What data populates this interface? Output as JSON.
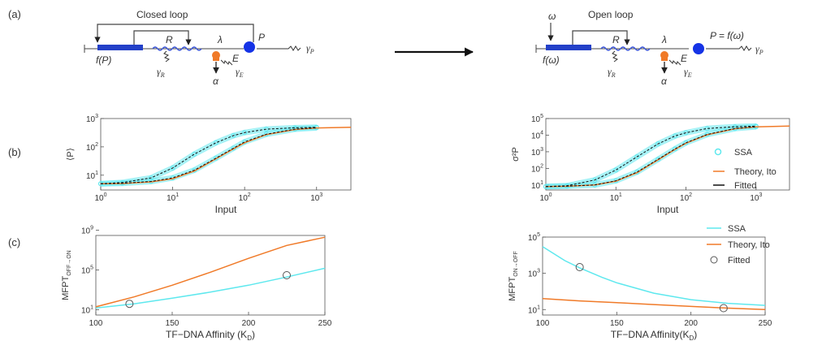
{
  "panel_labels": [
    "(a)",
    "(b)",
    "(c)"
  ],
  "diagram": {
    "closed": {
      "title": "Closed loop",
      "promoter": "f(P)",
      "R": "R",
      "gamma_R": "γ",
      "gamma_R_sub": "R",
      "lambda": "λ",
      "E": "E",
      "gamma_E": "γ",
      "gamma_E_sub": "E",
      "alpha": "α",
      "P": "P",
      "gamma_P": "γ",
      "gamma_P_sub": "P"
    },
    "open": {
      "title": "Open loop",
      "omega": "ω",
      "promoter": "f(ω)",
      "R": "R",
      "gamma_R": "γ",
      "gamma_R_sub": "R",
      "lambda": "λ",
      "E": "E",
      "gamma_E": "γ",
      "gamma_E_sub": "E",
      "alpha": "α",
      "P_eq": "P = f(ω)",
      "gamma_P": "γ",
      "gamma_P_sub": "P"
    }
  },
  "colors": {
    "ssa": "#5ee8ee",
    "theory": "#f07a28",
    "fitted": "#111111",
    "promoter": "#2340c8",
    "protein": "#1533e6",
    "enzyme": "#f07a28",
    "rna": "#3a55d8"
  },
  "legend_b": [
    "SSA",
    "Theory, Ito",
    "Fitted"
  ],
  "legend_c": [
    "SSA",
    "Theory, Ito",
    "Fitted"
  ],
  "chart_data": [
    {
      "panel": "b-left",
      "type": "line",
      "xlabel": "Input",
      "ylabel": "⟨P⟩",
      "xscale": "log",
      "yscale": "log",
      "xlim": [
        1,
        3000
      ],
      "ylim": [
        3,
        1000
      ],
      "xticks": [
        "10^0",
        "10^1",
        "10^2",
        "10^3"
      ],
      "yticks": [
        "10^1",
        "10^2",
        "10^3"
      ],
      "series": [
        {
          "kind": "SSA",
          "x": [
            1,
            2,
            5,
            10,
            20,
            40,
            70,
            100,
            200,
            500,
            1000
          ],
          "y": [
            5,
            5.5,
            8,
            18,
            55,
            140,
            250,
            320,
            420,
            470,
            490
          ]
        },
        {
          "kind": "SSA",
          "x": [
            1,
            2,
            5,
            10,
            20,
            40,
            70,
            100,
            200,
            500,
            1000
          ],
          "y": [
            5,
            5.2,
            6,
            8,
            15,
            40,
            90,
            150,
            280,
            420,
            470
          ]
        },
        {
          "kind": "Theory, Ito",
          "x": [
            1,
            2,
            5,
            10,
            20,
            40,
            70,
            100,
            200,
            500,
            1000,
            3000
          ],
          "y": [
            5,
            5.1,
            5.8,
            7.5,
            14,
            38,
            85,
            140,
            270,
            410,
            465,
            490
          ]
        },
        {
          "kind": "Fitted",
          "x": [
            1,
            2,
            5,
            10,
            20,
            40,
            70,
            100,
            200,
            500,
            1000
          ],
          "y": [
            5,
            5.5,
            8,
            18,
            55,
            140,
            250,
            320,
            420,
            470,
            490
          ]
        },
        {
          "kind": "Fitted",
          "x": [
            1,
            2,
            5,
            10,
            20,
            40,
            70,
            100,
            200,
            500,
            1000
          ],
          "y": [
            5,
            5.2,
            6,
            8,
            15,
            40,
            90,
            150,
            280,
            420,
            470
          ]
        }
      ]
    },
    {
      "panel": "b-right",
      "type": "line",
      "xlabel": "Input",
      "ylabel": "σ²P",
      "xscale": "log",
      "yscale": "log",
      "xlim": [
        1,
        3000
      ],
      "ylim": [
        5,
        100000
      ],
      "xticks": [
        "10^0",
        "10^1",
        "10^2",
        "10^3"
      ],
      "yticks": [
        "10^1",
        "10^2",
        "10^3",
        "10^4",
        "10^5"
      ],
      "series": [
        {
          "kind": "SSA",
          "x": [
            1,
            2,
            5,
            10,
            20,
            40,
            70,
            100,
            200,
            500,
            1000
          ],
          "y": [
            8,
            9,
            20,
            80,
            500,
            3000,
            9000,
            14000,
            25000,
            32000,
            35000
          ]
        },
        {
          "kind": "SSA",
          "x": [
            1,
            2,
            5,
            10,
            20,
            40,
            70,
            100,
            200,
            500,
            1000
          ],
          "y": [
            8,
            8.5,
            10,
            18,
            60,
            350,
            1500,
            3500,
            11000,
            25000,
            32000
          ]
        },
        {
          "kind": "Theory, Ito",
          "x": [
            1,
            2,
            5,
            10,
            20,
            40,
            70,
            100,
            200,
            500,
            1000,
            3000
          ],
          "y": [
            8,
            8.4,
            10,
            17,
            55,
            330,
            1400,
            3300,
            10500,
            24500,
            31500,
            35000
          ]
        },
        {
          "kind": "Fitted",
          "x": [
            1,
            2,
            5,
            10,
            20,
            40,
            70,
            100,
            200,
            500,
            1000
          ],
          "y": [
            8,
            9,
            20,
            80,
            500,
            3000,
            9000,
            14000,
            25000,
            32000,
            35000
          ]
        },
        {
          "kind": "Fitted",
          "x": [
            1,
            2,
            5,
            10,
            20,
            40,
            70,
            100,
            200,
            500,
            1000
          ],
          "y": [
            8,
            8.5,
            10,
            18,
            60,
            350,
            1500,
            3500,
            11000,
            25000,
            32000
          ]
        }
      ]
    },
    {
      "panel": "c-left",
      "type": "line",
      "xlabel": "TF−DNA Affinity (K",
      "xlabel_sub": "D",
      "ylabel": "MFPT",
      "ylabel_sub": "OFF→ON",
      "xscale": "linear",
      "yscale": "log",
      "xlim": [
        100,
        250
      ],
      "ylim": [
        3,
        300000000
      ],
      "xticks": [
        "100",
        "150",
        "200",
        "250"
      ],
      "yticks": [
        "10^1",
        "10^5",
        "10^9"
      ],
      "series": [
        {
          "kind": "SSA",
          "x": [
            100,
            125,
            150,
            175,
            200,
            225,
            250
          ],
          "y": [
            15,
            40,
            150,
            600,
            3000,
            20000,
            150000
          ]
        },
        {
          "kind": "Theory, Ito",
          "x": [
            100,
            125,
            150,
            175,
            200,
            225,
            250
          ],
          "y": [
            20,
            200,
            3000,
            60000,
            1500000,
            30000000,
            200000000
          ]
        },
        {
          "kind": "Fitted",
          "x": [
            122,
            225
          ],
          "y": [
            40,
            30000
          ],
          "marker": "circle"
        }
      ]
    },
    {
      "panel": "c-right",
      "type": "line",
      "xlabel": "TF−DNA Affinity(K",
      "xlabel_sub": "D",
      "ylabel": "MFPT",
      "ylabel_sub": "ON→OFF",
      "xscale": "linear",
      "yscale": "log",
      "xlim": [
        100,
        250
      ],
      "ylim": [
        5,
        100000
      ],
      "xticks": [
        "100",
        "150",
        "200",
        "250"
      ],
      "yticks": [
        "10^1",
        "10^3",
        "10^5"
      ],
      "series": [
        {
          "kind": "SSA",
          "x": [
            100,
            115,
            125,
            140,
            150,
            175,
            200,
            225,
            250
          ],
          "y": [
            30000,
            5000,
            2000,
            600,
            300,
            80,
            35,
            22,
            17
          ]
        },
        {
          "kind": "Theory, Ito",
          "x": [
            100,
            125,
            150,
            175,
            200,
            225,
            250
          ],
          "y": [
            40,
            30,
            24,
            19,
            15,
            12,
            10
          ]
        },
        {
          "kind": "Fitted",
          "x": [
            125,
            222
          ],
          "y": [
            2200,
            12
          ],
          "marker": "circle"
        }
      ]
    }
  ]
}
